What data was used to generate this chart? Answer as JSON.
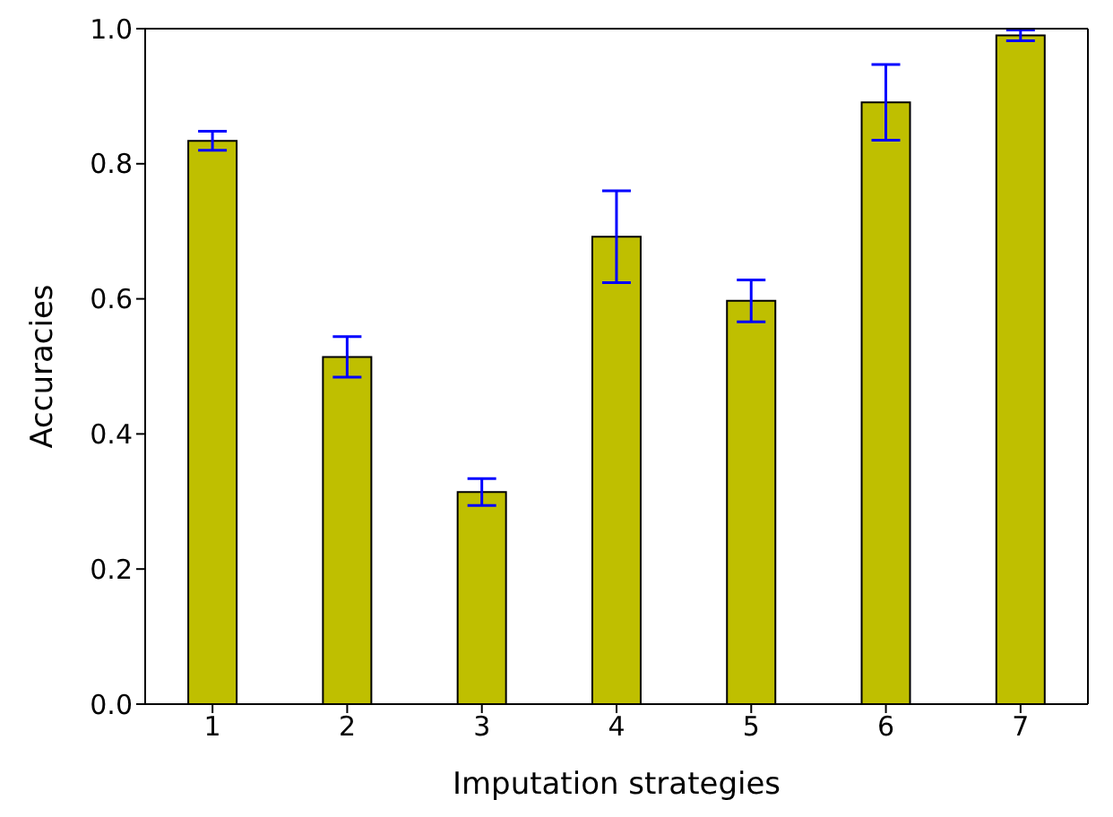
{
  "chart_data": {
    "type": "bar",
    "xlabel": "Imputation strategies",
    "ylabel": "Accuracies",
    "categories": [
      "1",
      "2",
      "3",
      "4",
      "5",
      "6",
      "7"
    ],
    "values": [
      0.834,
      0.514,
      0.314,
      0.692,
      0.597,
      0.891,
      0.99
    ],
    "errors": [
      0.014,
      0.03,
      0.02,
      0.068,
      0.031,
      0.056,
      0.008
    ],
    "color": "#bfbf00",
    "ylim": [
      0,
      1
    ],
    "yticks": [
      {
        "value": 0,
        "label": "0.0"
      },
      0.2,
      0.4,
      0.6,
      0.8,
      {
        "value": 1,
        "label": "1.0"
      }
    ],
    "grid": false
  }
}
